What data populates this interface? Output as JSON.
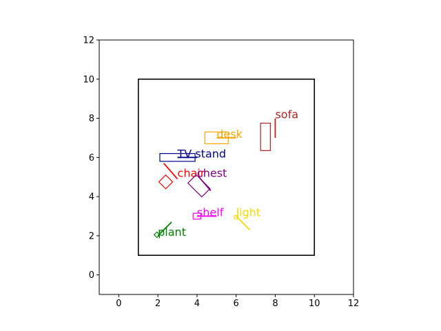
{
  "chart_data": {
    "type": "scatter",
    "title": "",
    "xlabel": "",
    "ylabel": "",
    "xlim": [
      -1,
      12
    ],
    "ylim": [
      -1,
      12
    ],
    "xticks": [
      0,
      2,
      4,
      6,
      8,
      10,
      12
    ],
    "yticks": [
      0,
      2,
      4,
      6,
      8,
      10,
      12
    ],
    "grid": false,
    "room": {
      "x0": 1,
      "y0": 1,
      "x1": 10,
      "y1": 10,
      "color": "#000000"
    },
    "objects": [
      {
        "name": "sofa",
        "color": "#b22222",
        "shape": "rect",
        "center": [
          7.5,
          7.05
        ],
        "size": [
          0.5,
          1.4
        ],
        "angle": 0,
        "dir": [
          [
            8.0,
            7.0
          ],
          [
            8.0,
            8.0
          ]
        ],
        "label_at": [
          8.0,
          8.0
        ]
      },
      {
        "name": "desk",
        "color": "#ffa500",
        "shape": "rect",
        "center": [
          5.0,
          7.0
        ],
        "size": [
          1.2,
          0.6
        ],
        "angle": 0,
        "dir": [
          [
            5.0,
            7.0
          ],
          [
            6.0,
            7.0
          ]
        ],
        "label_at": [
          5.0,
          7.0
        ]
      },
      {
        "name": "TV stand",
        "color": "#00008b",
        "shape": "rect",
        "center": [
          3.0,
          6.0
        ],
        "size": [
          1.8,
          0.4
        ],
        "angle": 0,
        "dir": [
          [
            3.0,
            6.0
          ],
          [
            4.0,
            6.0
          ]
        ],
        "label_at": [
          3.0,
          6.0
        ]
      },
      {
        "name": "chair",
        "color": "#ff0000",
        "shape": "rect",
        "center": [
          2.4,
          4.75
        ],
        "size": [
          0.5,
          0.5
        ],
        "angle": 45,
        "dir": [
          [
            2.3,
            5.7
          ],
          [
            3.0,
            4.9
          ]
        ],
        "label_at": [
          3.0,
          5.0
        ]
      },
      {
        "name": "chest",
        "color": "#800080",
        "shape": "rect",
        "center": [
          4.1,
          4.55
        ],
        "size": [
          1.0,
          0.6
        ],
        "angle": -45,
        "dir": [
          [
            4.1,
            5.0
          ],
          [
            4.7,
            4.3
          ]
        ],
        "label_at": [
          4.0,
          5.0
        ]
      },
      {
        "name": "shelf",
        "color": "#ff00ff",
        "shape": "rect",
        "center": [
          4.0,
          3.0
        ],
        "size": [
          0.4,
          0.3
        ],
        "angle": 0,
        "dir": [
          [
            4.0,
            3.0
          ],
          [
            5.0,
            3.0
          ]
        ],
        "label_at": [
          4.0,
          3.0
        ]
      },
      {
        "name": "light",
        "color": "#ffd700",
        "shape": "circle",
        "center": [
          6.0,
          2.95
        ],
        "r": 0.1,
        "dir": [
          [
            6.0,
            3.0
          ],
          [
            6.7,
            2.3
          ]
        ],
        "label_at": [
          6.0,
          3.0
        ]
      },
      {
        "name": "plant",
        "color": "#008000",
        "shape": "rect",
        "center": [
          1.95,
          2.05
        ],
        "size": [
          0.2,
          0.2
        ],
        "angle": 45,
        "dir": [
          [
            2.0,
            2.0
          ],
          [
            2.7,
            2.7
          ]
        ],
        "label_at": [
          2.0,
          2.0
        ]
      }
    ]
  }
}
